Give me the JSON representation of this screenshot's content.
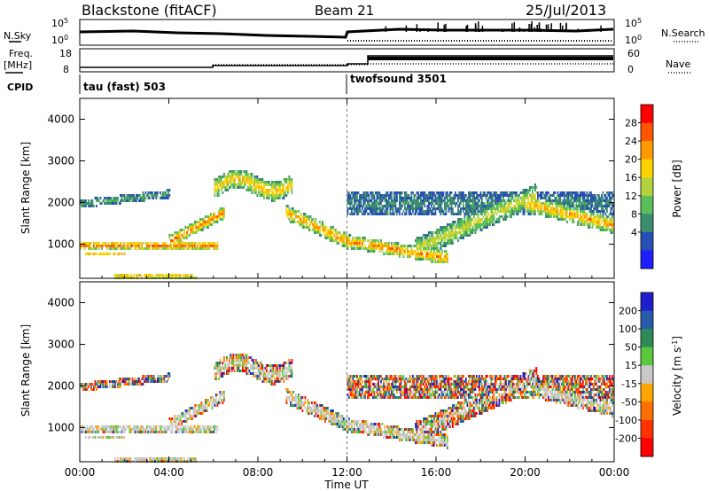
{
  "header": {
    "station": "Blackstone (fitACF)",
    "beam": "Beam 21",
    "date": "25/Jul/2013"
  },
  "panel_labels": {
    "nsky": "N.Sky",
    "nsearch": "N.Search",
    "freq_line1": "Freq.",
    "freq_line2": "[MHz]",
    "cpid": "CPID",
    "nave": "Nave",
    "nsky_ticks": [
      "10^5",
      "10^0"
    ],
    "nsearch_ticks": [
      "10^5",
      "10^0"
    ],
    "freq_ticks": [
      "18",
      "8"
    ],
    "nave_ticks": [
      "60",
      "0"
    ]
  },
  "cpid": [
    {
      "name": "tau (fast) 503",
      "start_hour": 0
    },
    {
      "name": "twofsound 3501",
      "start_hour": 12
    }
  ],
  "x_axis": {
    "label": "Time UT",
    "ticks": [
      "00:00",
      "04:00",
      "08:00",
      "12:00",
      "16:00",
      "20:00",
      "00:00"
    ]
  },
  "chart_data": [
    {
      "type": "heatmap",
      "title": "",
      "xlabel": "Time UT",
      "ylabel": "Slant Range [km]",
      "xlim_hours": [
        0,
        24
      ],
      "ylim_km": [
        180,
        4500
      ],
      "yticks": [
        1000,
        2000,
        3000,
        4000
      ],
      "colorbar": {
        "label": "Power [dB]",
        "ticks": [
          "28",
          "24",
          "20",
          "16",
          "12",
          "8",
          "4"
        ],
        "colors": [
          "#ff0000",
          "#ff5500",
          "#ff9900",
          "#ffd200",
          "#b4d23c",
          "#5abe5a",
          "#3c8c6e",
          "#2850b4",
          "#1e1eff"
        ]
      }
    },
    {
      "type": "heatmap",
      "title": "",
      "xlabel": "Time UT",
      "ylabel": "Slant Range [km]",
      "xlim_hours": [
        0,
        24
      ],
      "ylim_km": [
        180,
        4500
      ],
      "yticks": [
        1000,
        2000,
        3000,
        4000
      ],
      "colorbar": {
        "label": "Velocity [m s^-1]",
        "ticks": [
          "200",
          "100",
          "50",
          "15",
          "-15",
          "-50",
          "-100",
          "-200"
        ],
        "colors": [
          "#1e1ecd",
          "#285aaa",
          "#2e8b57",
          "#5ac83c",
          "#c8c8c8",
          "#ffa500",
          "#ff6e00",
          "#ff3200",
          "#ff0000"
        ]
      }
    }
  ]
}
